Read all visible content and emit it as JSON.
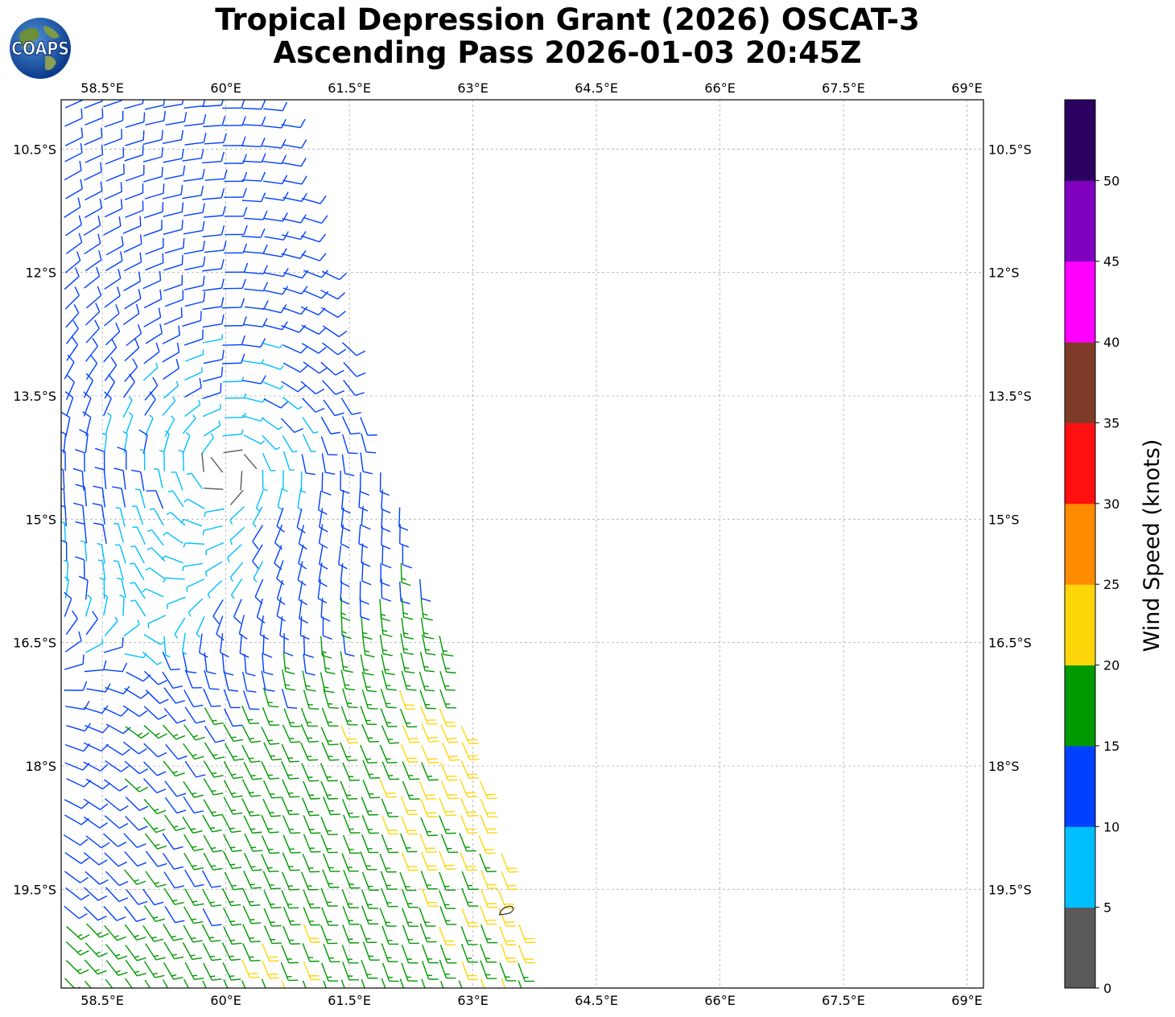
{
  "title": {
    "line1": "Tropical Depression Grant (2026) OSCAT-3",
    "line2": "Ascending Pass 2026-01-03 20:45Z"
  },
  "logo": {
    "text": "COAPS",
    "icon": "globe-logo-icon"
  },
  "map": {
    "lon_range": [
      58.0,
      69.2
    ],
    "lat_range": [
      -20.7,
      -9.9
    ],
    "lon_ticks": [
      {
        "value": 58.5,
        "label": "58.5°E"
      },
      {
        "value": 60.0,
        "label": "60°E"
      },
      {
        "value": 61.5,
        "label": "61.5°E"
      },
      {
        "value": 63.0,
        "label": "63°E"
      },
      {
        "value": 64.5,
        "label": "64.5°E"
      },
      {
        "value": 66.0,
        "label": "66°E"
      },
      {
        "value": 67.5,
        "label": "67.5°E"
      },
      {
        "value": 69.0,
        "label": "69°E"
      }
    ],
    "lat_ticks": [
      {
        "value": -10.5,
        "label": "10.5°S"
      },
      {
        "value": -12.0,
        "label": "12°S"
      },
      {
        "value": -13.5,
        "label": "13.5°S"
      },
      {
        "value": -15.0,
        "label": "15°S"
      },
      {
        "value": -16.5,
        "label": "16.5°S"
      },
      {
        "value": -18.0,
        "label": "18°S"
      },
      {
        "value": -19.5,
        "label": "19.5°S"
      }
    ],
    "swath_polygon": [
      [
        58.0,
        -9.9
      ],
      [
        60.6,
        -9.9
      ],
      [
        61.6,
        -13.5
      ],
      [
        62.4,
        -15.6
      ],
      [
        63.8,
        -20.7
      ],
      [
        58.0,
        -20.7
      ]
    ],
    "circulation_center": [
      60.0,
      -14.4
    ],
    "grid_color": "#b0b0b0",
    "island_outline": {
      "lon": 63.4,
      "lat": -19.75
    }
  },
  "colorbar": {
    "label": "Wind Speed (knots)",
    "range": [
      0,
      55
    ],
    "tick_values": [
      0,
      5,
      10,
      15,
      20,
      25,
      30,
      35,
      40,
      45,
      50
    ],
    "tick_labels": [
      "0",
      "5",
      "10",
      "15",
      "20",
      "25",
      "30",
      "35",
      "40",
      "45",
      "50"
    ],
    "bins": [
      {
        "min": 0,
        "max": 5,
        "color": "#595959"
      },
      {
        "min": 5,
        "max": 10,
        "color": "#00bfff"
      },
      {
        "min": 10,
        "max": 15,
        "color": "#0040ff"
      },
      {
        "min": 15,
        "max": 20,
        "color": "#009900"
      },
      {
        "min": 20,
        "max": 25,
        "color": "#ffd60a"
      },
      {
        "min": 25,
        "max": 30,
        "color": "#ff8c00"
      },
      {
        "min": 30,
        "max": 35,
        "color": "#ff1010"
      },
      {
        "min": 35,
        "max": 40,
        "color": "#7f3b2a"
      },
      {
        "min": 40,
        "max": 45,
        "color": "#ff00ff"
      },
      {
        "min": 45,
        "max": 50,
        "color": "#8000c0"
      },
      {
        "min": 50,
        "max": 55,
        "color": "#2a0060"
      }
    ]
  }
}
